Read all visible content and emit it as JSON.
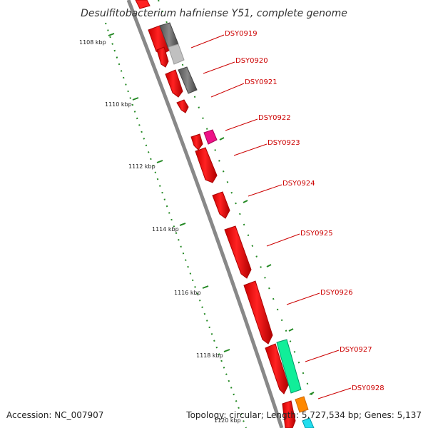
{
  "title": "Desulfitobacterium hafniense Y51, complete genome",
  "footer": {
    "accession_label": "Accession:",
    "accession": "NC_007907",
    "topology_label": "Topology:",
    "topology": "circular;",
    "length_label": "Length:",
    "length": "5,727,534 bp;",
    "genes_label": "Genes:",
    "genes": "5,137"
  },
  "ticks": [
    {
      "label": "1108 kbp"
    },
    {
      "label": "1110 kbp"
    },
    {
      "label": "1112 kbp"
    },
    {
      "label": "1114 kbp"
    },
    {
      "label": "1116 kbp"
    },
    {
      "label": "1118 kbp"
    },
    {
      "label": "1120 kbp"
    }
  ],
  "genes": [
    {
      "label": "DSY0919"
    },
    {
      "label": "DSY0920"
    },
    {
      "label": "DSY0921"
    },
    {
      "label": "DSY0922"
    },
    {
      "label": "DSY0923"
    },
    {
      "label": "DSY0924"
    },
    {
      "label": "DSY0925"
    },
    {
      "label": "DSY0926"
    },
    {
      "label": "DSY0927"
    },
    {
      "label": "DSY0928"
    }
  ],
  "colors": {
    "forward_gene": "#ff0000",
    "reverse_gene": "#666666",
    "reverse_gene_light": "#c0c0c0",
    "magenta_gene": "#ee1188",
    "green_gene": "#11ee99",
    "orange_gene": "#ff8800",
    "cyan_gene": "#22ddee",
    "backbone": "#888888",
    "tick_green": "#228822",
    "label_red": "#cc0000"
  }
}
